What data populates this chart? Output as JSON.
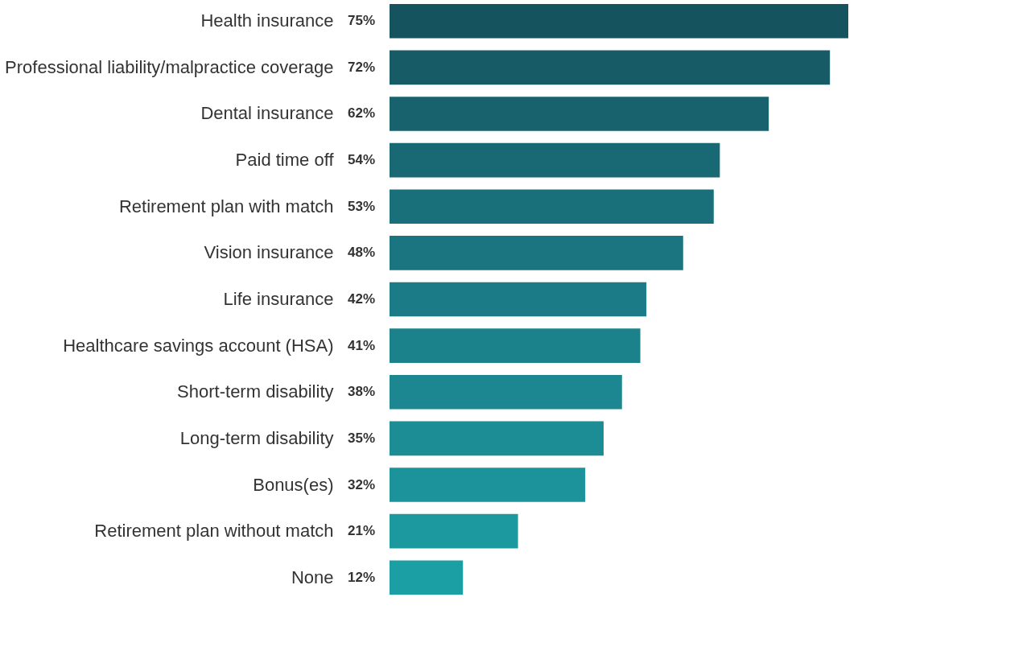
{
  "chart_data": {
    "type": "bar",
    "orientation": "horizontal",
    "categories": [
      "Health insurance",
      "Professional liability/malpractice coverage",
      "Dental insurance",
      "Paid time off",
      "Retirement plan with match",
      "Vision insurance",
      "Life insurance",
      "Healthcare savings account (HSA)",
      "Short-term disability",
      "Long-term disability",
      "Bonus(es)",
      "Retirement plan without match",
      "None"
    ],
    "values": [
      75,
      72,
      62,
      54,
      53,
      48,
      42,
      41,
      38,
      35,
      32,
      21,
      12
    ],
    "value_labels": [
      "75%",
      "72%",
      "62%",
      "54%",
      "53%",
      "48%",
      "42%",
      "41%",
      "38%",
      "35%",
      "32%",
      "21%",
      "12%"
    ],
    "colors": [
      "#15535e",
      "#165b66",
      "#17626d",
      "#186974",
      "#196f7a",
      "#1a7580",
      "#1b7b86",
      "#1b818b",
      "#1c8790",
      "#1c8d95",
      "#1c939a",
      "#1c999f",
      "#1c9fa4"
    ],
    "grid": false
  }
}
